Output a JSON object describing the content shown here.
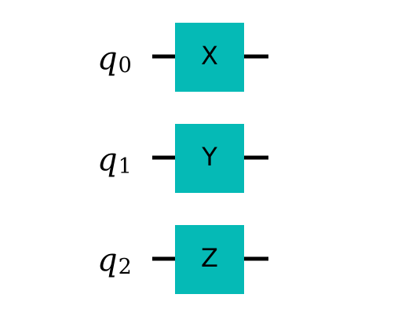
{
  "colors": {
    "gate_fill": "#05BAB6",
    "wire": "#000000",
    "background": "#FFFFFF"
  },
  "qubits": [
    {
      "symbol": "q",
      "index": "0",
      "gate": "X"
    },
    {
      "symbol": "q",
      "index": "1",
      "gate": "Y"
    },
    {
      "symbol": "q",
      "index": "2",
      "gate": "Z"
    }
  ]
}
